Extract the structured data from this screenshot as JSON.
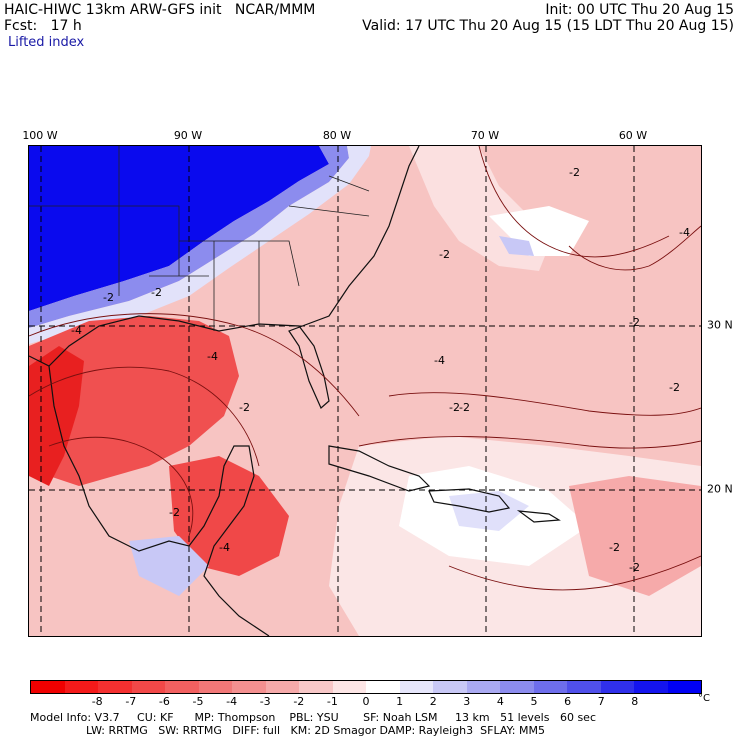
{
  "header": {
    "line1_left": "HAIC-HIWC 13km ARW-GFS init   NCAR/MMM",
    "line2_left": "Fcst:   17 h",
    "field": "Lifted index",
    "line1_right": "Init: 00 UTC Thu 20 Aug 15",
    "line2_right": "Valid: 17 UTC Thu 20 Aug 15 (15 LDT Thu 20 Aug 15)"
  },
  "map": {
    "lon_labels": [
      "100 W",
      "90 W",
      "80 W",
      "70 W",
      "60 W"
    ],
    "lat_labels": [
      "30 N",
      "20 N"
    ],
    "contour_labels": [
      "-2",
      "-2",
      "-4",
      "-4",
      "-2",
      "-2",
      "-2",
      "-2",
      "-4",
      "-2",
      "-2",
      "-4",
      "-4",
      "-2",
      "-2",
      "-2",
      "-2"
    ]
  },
  "colorbar": {
    "unit": "°C",
    "ticks": [
      "-8",
      "-7",
      "-6",
      "-5",
      "-4",
      "-3",
      "-2",
      "-1",
      "0",
      "1",
      "2",
      "3",
      "4",
      "5",
      "6",
      "7",
      "8"
    ],
    "colors": [
      "#f00000",
      "#f41a1a",
      "#f43030",
      "#f24848",
      "#f26060",
      "#f27878",
      "#f49090",
      "#f6aaaa",
      "#f8c8c8",
      "#fde6e6",
      "#ffffff",
      "#e6e6fb",
      "#c8c8f6",
      "#aaaaf2",
      "#8c8cee",
      "#6e6eec",
      "#5050ea",
      "#3030ea",
      "#1414ee",
      "#0000f4"
    ]
  },
  "model_info": {
    "line1": "Model Info: V3.7     CU: KF      MP: Thompson    PBL: YSU       SF: Noah LSM     13 km   51 levels   60 sec",
    "line2": "                LW: RRTMG   SW: RRTMG   DIFF: full   KM: 2D Smagor DAMP: Rayleigh3  SFLAY: MM5"
  }
}
